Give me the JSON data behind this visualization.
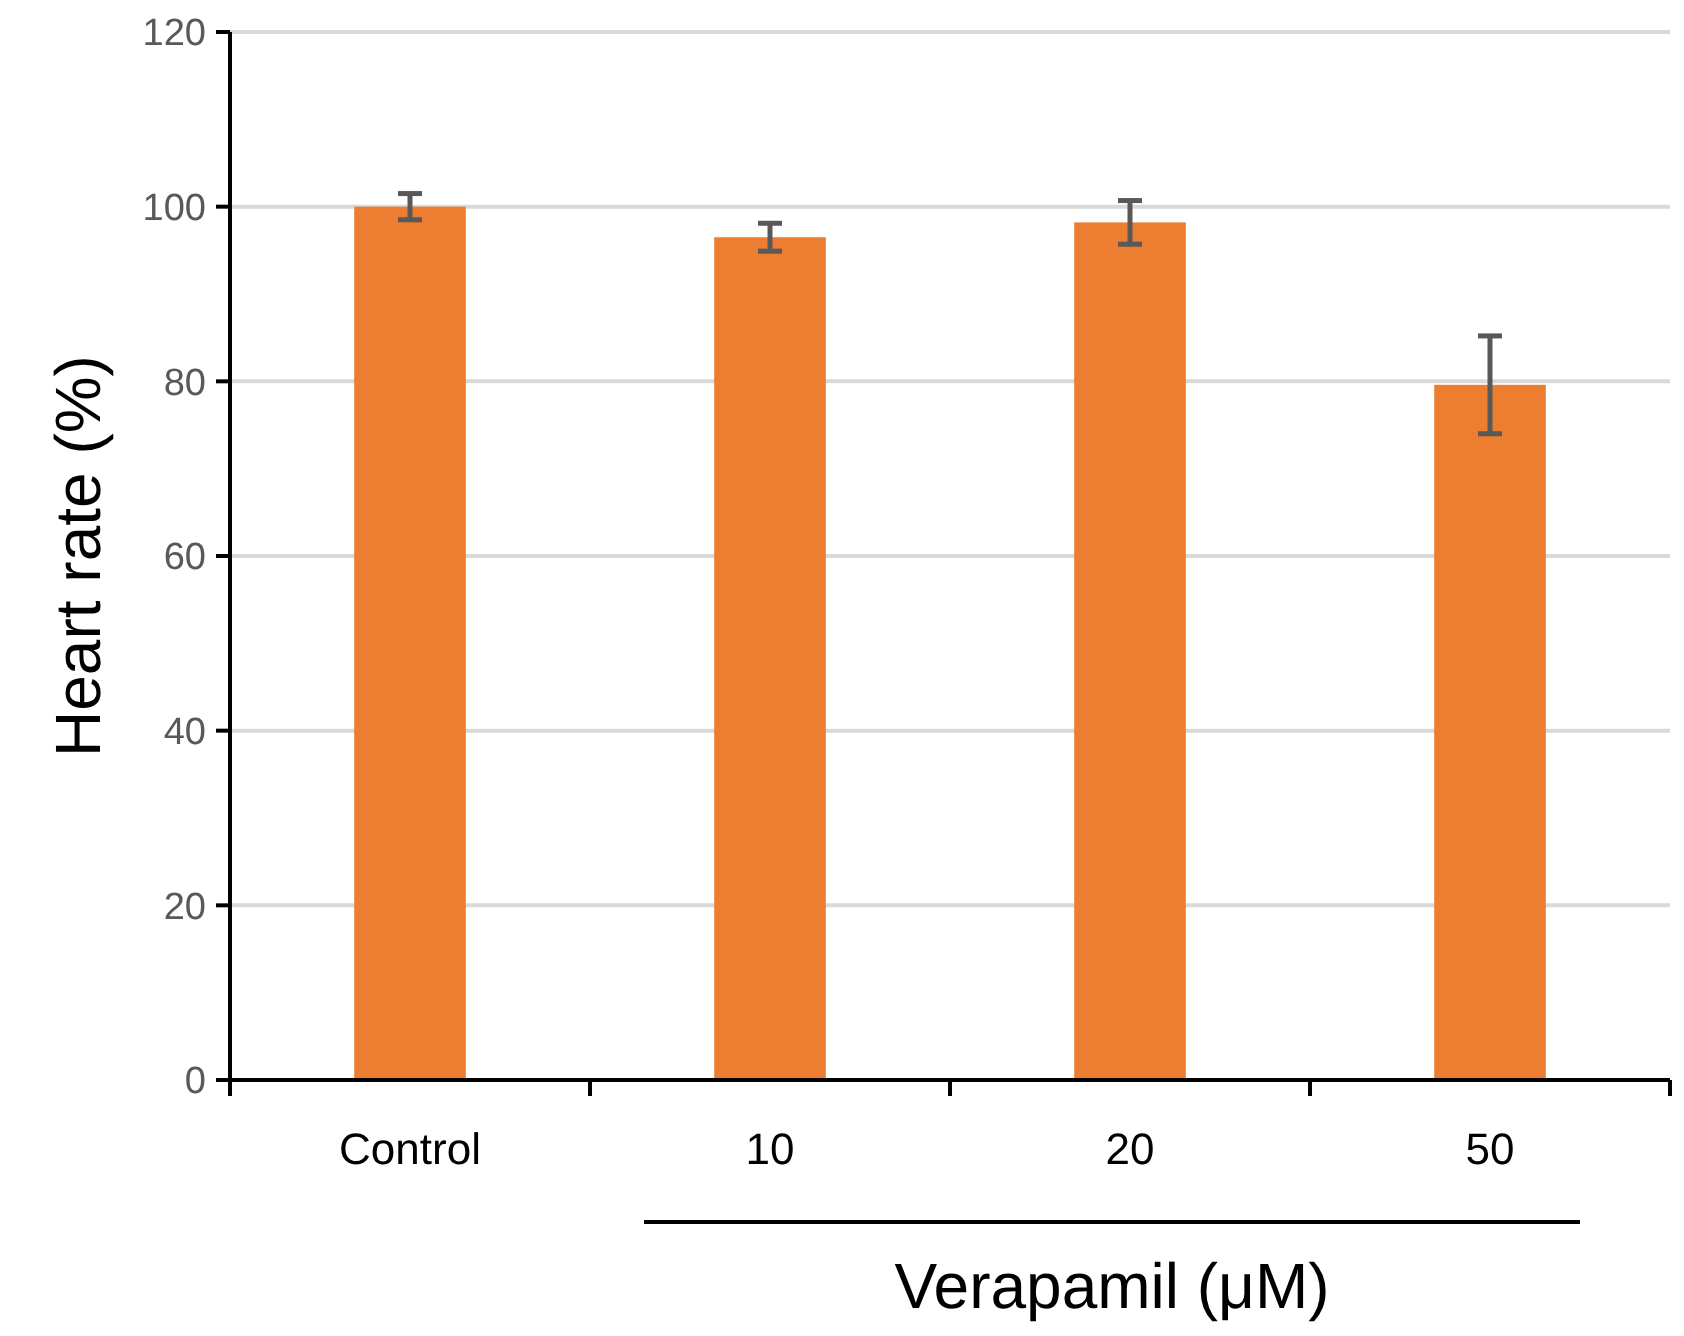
{
  "chart_data": {
    "type": "bar",
    "categories": [
      "Control",
      "10",
      "20",
      "50"
    ],
    "values": [
      100,
      96.5,
      98.2,
      79.6
    ],
    "errors": [
      1.5,
      1.6,
      2.5,
      5.6
    ],
    "color": "#ed7d31",
    "ylabel": "Heart rate (%)",
    "xlabel": "Verapamil (μM)",
    "ylim": [
      0,
      120
    ],
    "yticks": [
      0,
      20,
      40,
      60,
      80,
      100,
      120
    ],
    "grid": "y"
  }
}
